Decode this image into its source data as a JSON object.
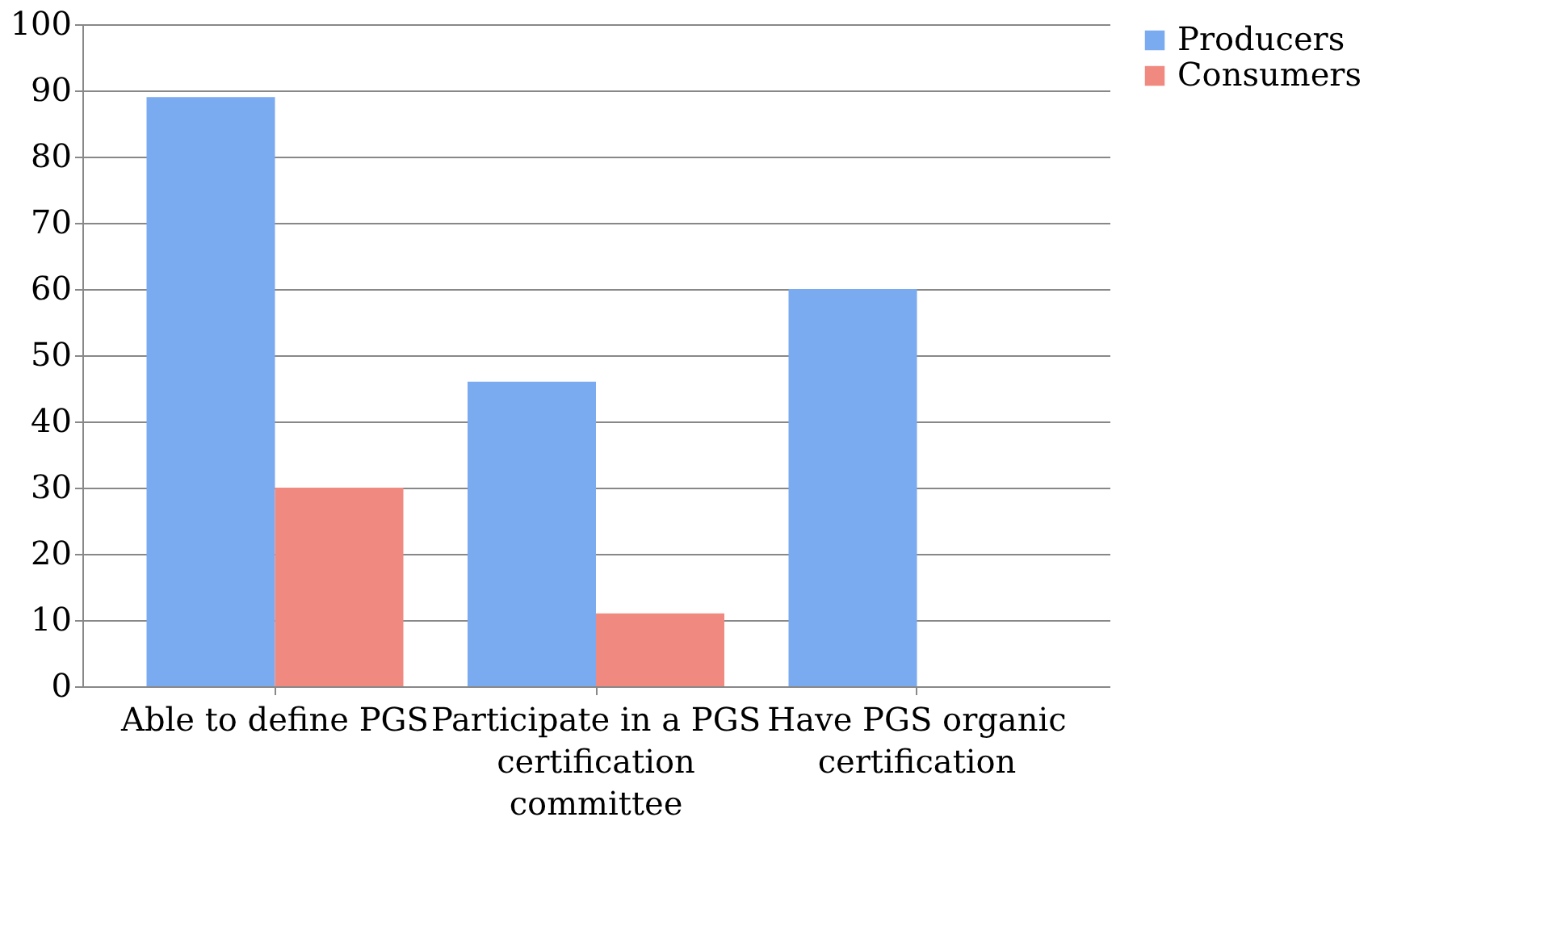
{
  "chart_data": {
    "type": "bar",
    "categories": [
      "Able to define PGS",
      "Participate in a PGS certification committee",
      "Have PGS organic certification"
    ],
    "series": [
      {
        "name": "Producers",
        "color": "#7aaaf0",
        "values": [
          89,
          46,
          60
        ]
      },
      {
        "name": "Consumers",
        "color": "#f08a80",
        "values": [
          30,
          11,
          0
        ]
      }
    ],
    "ylim": [
      0,
      100
    ],
    "yticks": [
      0,
      10,
      20,
      30,
      40,
      50,
      60,
      70,
      80,
      90,
      100
    ],
    "grid": "y",
    "legend": "right"
  }
}
